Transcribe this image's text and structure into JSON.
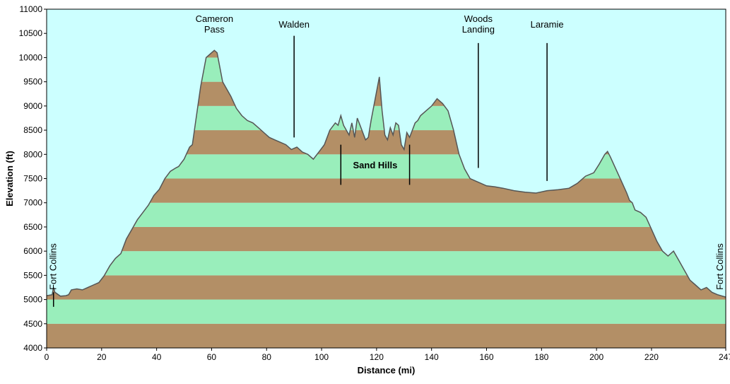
{
  "chart_data": {
    "type": "area",
    "xlabel": "Distance   (mi)",
    "ylabel": "Elevation (ft)",
    "xlim": [
      0,
      247
    ],
    "ylim": [
      4000,
      11000
    ],
    "x_ticks": [
      0,
      20,
      40,
      60,
      80,
      100,
      120,
      140,
      160,
      180,
      200,
      220,
      247
    ],
    "y_ticks": [
      4000,
      4500,
      5000,
      5500,
      6000,
      6500,
      7000,
      7500,
      8000,
      8500,
      9000,
      9500,
      10000,
      10500,
      11000
    ],
    "band_step": 500,
    "colors": {
      "background": "#ccffff",
      "band_light": "#99eebb",
      "band_dark": "#b38f66",
      "profile_line": "#555555",
      "frame": "#000000"
    },
    "profile": {
      "x": [
        0,
        2,
        2.5,
        3,
        5,
        7,
        8,
        9,
        11,
        13,
        15,
        17,
        19,
        21,
        23,
        25,
        27,
        29,
        31,
        33,
        35,
        37,
        39,
        41,
        43,
        45,
        47,
        48,
        50,
        52,
        53,
        54,
        55,
        56,
        57,
        58,
        59,
        60,
        61,
        62,
        63,
        64,
        65,
        67,
        69,
        71,
        73,
        75,
        77,
        79,
        81,
        83,
        85,
        87,
        89,
        91,
        93,
        95,
        97,
        99,
        101,
        103,
        105,
        106,
        107,
        108,
        109,
        110,
        111,
        112,
        113,
        114,
        115,
        116,
        117,
        118,
        119,
        120,
        121,
        122,
        123,
        124,
        125,
        126,
        127,
        128,
        129,
        130,
        131,
        132,
        133,
        134,
        135,
        136,
        138,
        140,
        142,
        144,
        146,
        148,
        150,
        152,
        154,
        156,
        158,
        160,
        163,
        166,
        170,
        174,
        178,
        182,
        186,
        190,
        193,
        196,
        199,
        201,
        203,
        204,
        205,
        207,
        209,
        211,
        212,
        213,
        214,
        216,
        218,
        220,
        222,
        224,
        226,
        228,
        230,
        232,
        234,
        236,
        238,
        240,
        242,
        244,
        247
      ],
      "y": [
        5080,
        5100,
        5250,
        5150,
        5070,
        5080,
        5100,
        5200,
        5220,
        5200,
        5250,
        5300,
        5350,
        5500,
        5700,
        5850,
        5950,
        6250,
        6450,
        6650,
        6800,
        6950,
        7150,
        7280,
        7500,
        7650,
        7720,
        7750,
        7900,
        8150,
        8200,
        8600,
        9000,
        9400,
        9700,
        10000,
        10050,
        10100,
        10150,
        10100,
        9800,
        9500,
        9400,
        9200,
        8950,
        8800,
        8700,
        8650,
        8550,
        8450,
        8350,
        8300,
        8250,
        8200,
        8100,
        8150,
        8050,
        8000,
        7900,
        8050,
        8200,
        8500,
        8650,
        8600,
        8800,
        8600,
        8500,
        8400,
        8650,
        8350,
        8750,
        8600,
        8450,
        8300,
        8350,
        8700,
        9000,
        9300,
        9600,
        8900,
        8400,
        8300,
        8550,
        8400,
        8650,
        8600,
        8200,
        8100,
        8450,
        8350,
        8500,
        8650,
        8700,
        8800,
        8900,
        9000,
        9150,
        9050,
        8900,
        8500,
        8000,
        7700,
        7500,
        7450,
        7400,
        7350,
        7330,
        7300,
        7250,
        7220,
        7200,
        7250,
        7270,
        7300,
        7400,
        7550,
        7620,
        7800,
        8000,
        8060,
        7950,
        7700,
        7450,
        7200,
        7050,
        7000,
        6850,
        6800,
        6700,
        6450,
        6200,
        6000,
        5900,
        6000,
        5800,
        5600,
        5400,
        5300,
        5200,
        5250,
        5150,
        5100,
        5050
      ]
    },
    "annotations": [
      {
        "label": "Cameron\nPass",
        "x": 61,
        "line": false
      },
      {
        "label": "Walden",
        "x": 90,
        "line_top": 10450,
        "line_bottom": 8350
      },
      {
        "label": "Woods\nLanding",
        "x": 157,
        "line_top": 10300,
        "line_bottom": 7720
      },
      {
        "label": "Laramie",
        "x": 182,
        "line_top": 10300,
        "line_bottom": 7450
      },
      {
        "label": "Sand Hills",
        "x_start": 107,
        "x_end": 132,
        "y_top": 8200,
        "y_bottom": 7370
      },
      {
        "label": "Fort Collins",
        "x": 2.5,
        "line_top": 5150,
        "line_bottom": 4850,
        "vertical_text": true
      },
      {
        "label": "Fort Collins",
        "x": 247,
        "vertical_text": true
      }
    ]
  }
}
